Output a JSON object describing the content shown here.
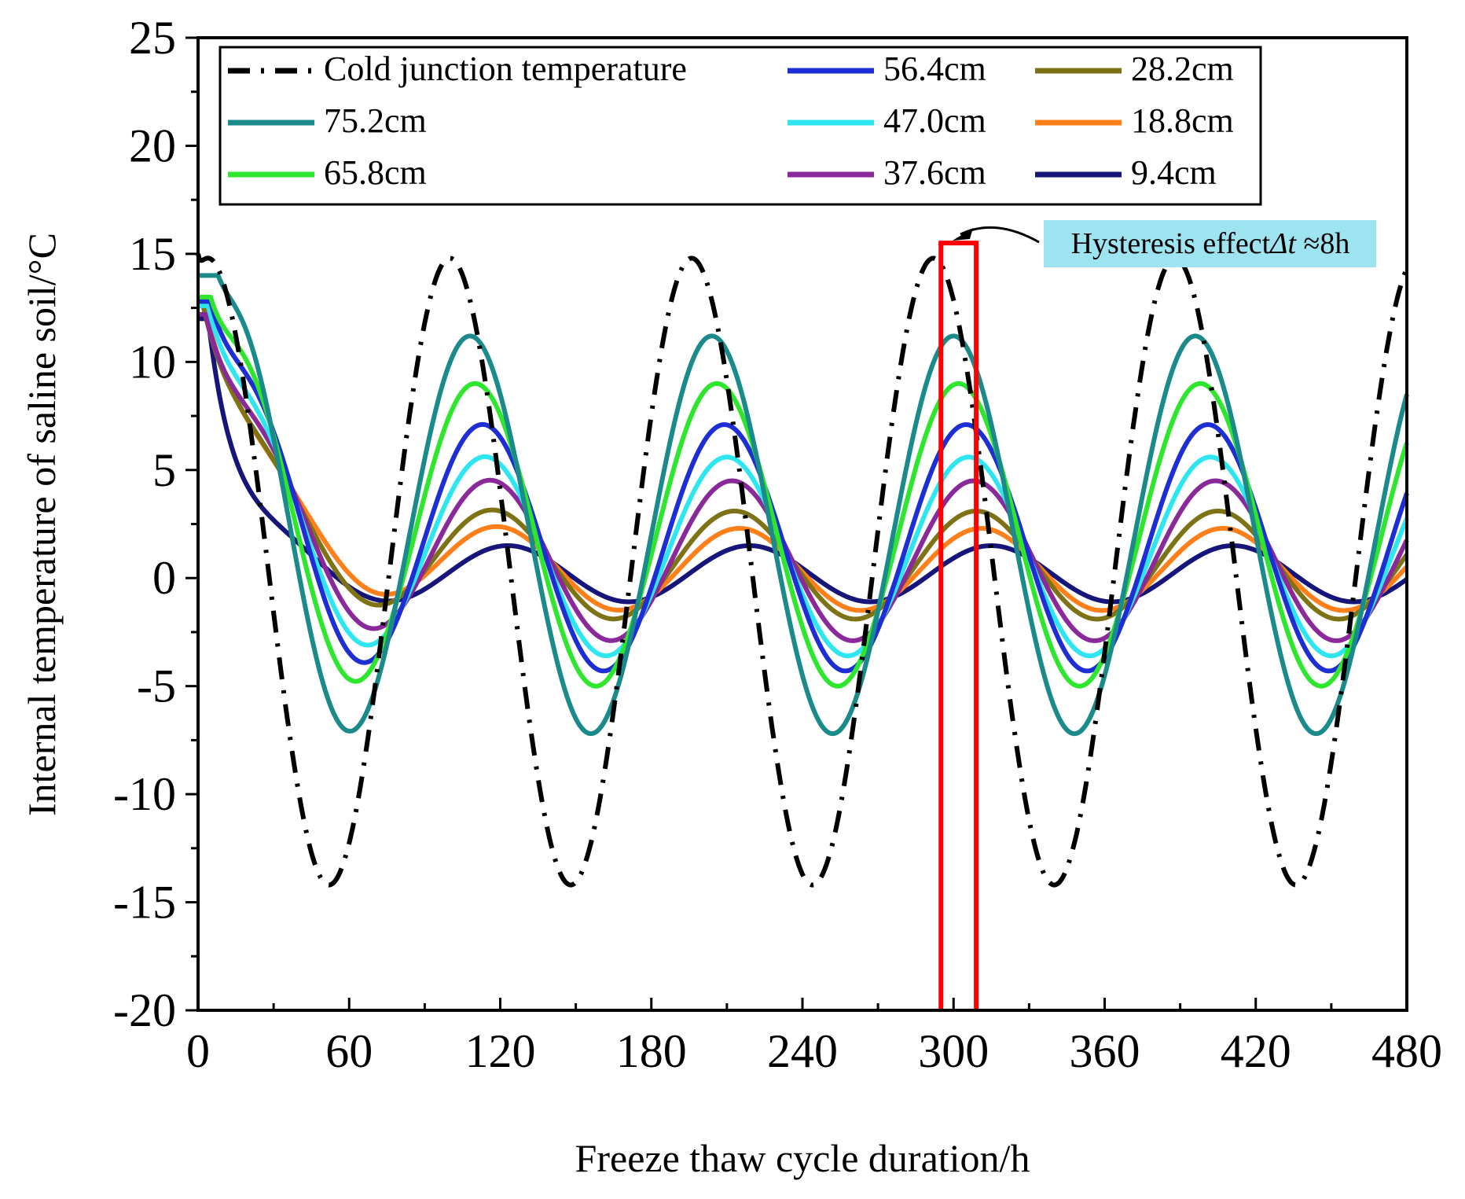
{
  "chart_data": {
    "type": "line",
    "xlabel": "Freeze thaw cycle duration/h",
    "ylabel": "Internal temperature of saline soil/°C",
    "xlim": [
      0,
      480
    ],
    "ylim": [
      -20,
      25
    ],
    "x_ticks": [
      0,
      60,
      120,
      180,
      240,
      300,
      360,
      420,
      480
    ],
    "y_ticks": [
      25,
      20,
      15,
      10,
      5,
      0,
      -5,
      -10,
      -15,
      -20
    ],
    "y_tick_labels": [
      "25",
      "20",
      "15",
      "10",
      "5",
      "0",
      "-5",
      "-10",
      "-15",
      "-20"
    ],
    "grid": false,
    "legend_position": "top-left",
    "annotation": {
      "text_prefix": "Hysteresis effect",
      "text_symbol": "Δt",
      "text_suffix": " ≈8h",
      "background": "#9ee3f0",
      "marker_color": "#ff0000",
      "marker_x": [
        295,
        309
      ]
    },
    "series": [
      {
        "name": "Cold junction temperature",
        "color": "#000000",
        "dash": "dashdot",
        "x0": 0,
        "initial": 15.0,
        "base": 0.3,
        "amp": 14.5,
        "phase": 100,
        "tau": 1
      },
      {
        "name": "75.2cm",
        "color": "#1b8a8a",
        "dash": "solid",
        "x0": 8,
        "initial": 14.0,
        "base": 2.0,
        "amp": 9.2,
        "phase": 108,
        "tau": 10
      },
      {
        "name": "65.8cm",
        "color": "#2fe62f",
        "dash": "solid",
        "x0": 5,
        "initial": 13.0,
        "base": 2.0,
        "amp": 7.0,
        "phase": 110,
        "tau": 13
      },
      {
        "name": "56.4cm",
        "color": "#1c2ed4",
        "dash": "solid",
        "x0": 5,
        "initial": 12.8,
        "base": 1.4,
        "amp": 5.7,
        "phase": 113,
        "tau": 16
      },
      {
        "name": "47.0cm",
        "color": "#2ee6f0",
        "dash": "solid",
        "x0": 4,
        "initial": 12.6,
        "base": 1.0,
        "amp": 4.6,
        "phase": 114,
        "tau": 18
      },
      {
        "name": "37.6cm",
        "color": "#8a2a9a",
        "dash": "solid",
        "x0": 3,
        "initial": 12.2,
        "base": 0.8,
        "amp": 3.7,
        "phase": 116,
        "tau": 20
      },
      {
        "name": "28.2cm",
        "color": "#7d7316",
        "dash": "solid",
        "x0": 2,
        "initial": 12.6,
        "base": 0.6,
        "amp": 2.5,
        "phase": 117,
        "tau": 22
      },
      {
        "name": "18.8cm",
        "color": "#ff7f1a",
        "dash": "solid",
        "x0": 2,
        "initial": 12.8,
        "base": 0.4,
        "amp": 1.9,
        "phase": 119,
        "tau": 24
      },
      {
        "name": "9.4cm",
        "color": "#15157a",
        "dash": "solid",
        "x0": 4,
        "initial": 12.0,
        "base": 0.2,
        "amp": 1.3,
        "phase": 123,
        "tau": 12
      }
    ]
  }
}
